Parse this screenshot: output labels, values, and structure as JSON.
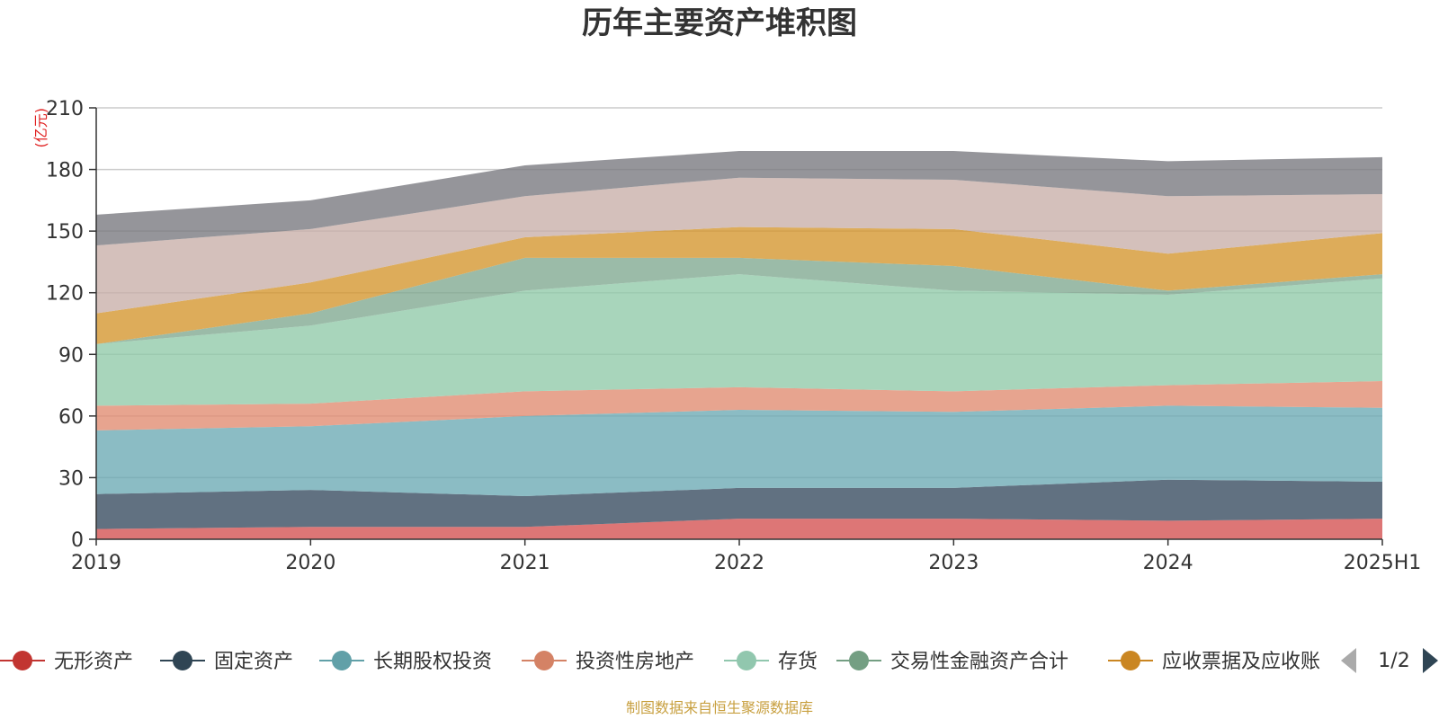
{
  "chart_data": {
    "type": "area",
    "stacked": true,
    "title": "历年主要资产堆积图",
    "unit_label": "(亿元)",
    "x": [
      "2019",
      "2020",
      "2021",
      "2022",
      "2023",
      "2024",
      "2025H1"
    ],
    "ylim": [
      0,
      210
    ],
    "yticks": [
      0,
      30,
      60,
      90,
      120,
      150,
      180,
      210
    ],
    "grid": true,
    "series": [
      {
        "name": "无形资产",
        "color": "#d4504f",
        "values": [
          5,
          6,
          6,
          10,
          10,
          9,
          10
        ]
      },
      {
        "name": "固定资产",
        "color": "#34495e",
        "values": [
          17,
          18,
          15,
          15,
          15,
          20,
          18
        ]
      },
      {
        "name": "长期股权投资",
        "color": "#6aa9b4",
        "values": [
          31,
          31,
          39,
          38,
          37,
          36,
          36
        ]
      },
      {
        "name": "投资性房地产",
        "color": "#e08a70",
        "values": [
          12,
          11,
          12,
          11,
          10,
          10,
          13
        ]
      },
      {
        "name": "存货",
        "color": "#8fc9a8",
        "values": [
          30,
          38,
          49,
          55,
          49,
          44,
          50
        ]
      },
      {
        "name": "交易性金融资产合计",
        "color": "#7fa890",
        "values": [
          0,
          6,
          16,
          8,
          12,
          2,
          2
        ]
      },
      {
        "name": "应收票据及应收账",
        "color": "#d4952c",
        "values": [
          15,
          15,
          10,
          15,
          18,
          18,
          20
        ]
      },
      {
        "name": "",
        "color": "#c8aea8",
        "values": [
          33,
          26,
          20,
          24,
          24,
          28,
          19
        ]
      },
      {
        "name": "",
        "color": "#77777e",
        "values": [
          15,
          14,
          15,
          13,
          14,
          17,
          18
        ]
      }
    ],
    "legend": {
      "position": "bottom",
      "items": [
        "无形资产",
        "固定资产",
        "长期股权投资",
        "投资性房地产",
        "存货",
        "交易性金融资产合计",
        "应收票据及应收账"
      ],
      "page": "1/2"
    },
    "source": "制图数据来自恒生聚源数据库"
  },
  "legend_colors": [
    "#c23531",
    "#2f4554",
    "#61a0a8",
    "#d48265",
    "#91c7ae",
    "#749f83",
    "#ca8622"
  ]
}
